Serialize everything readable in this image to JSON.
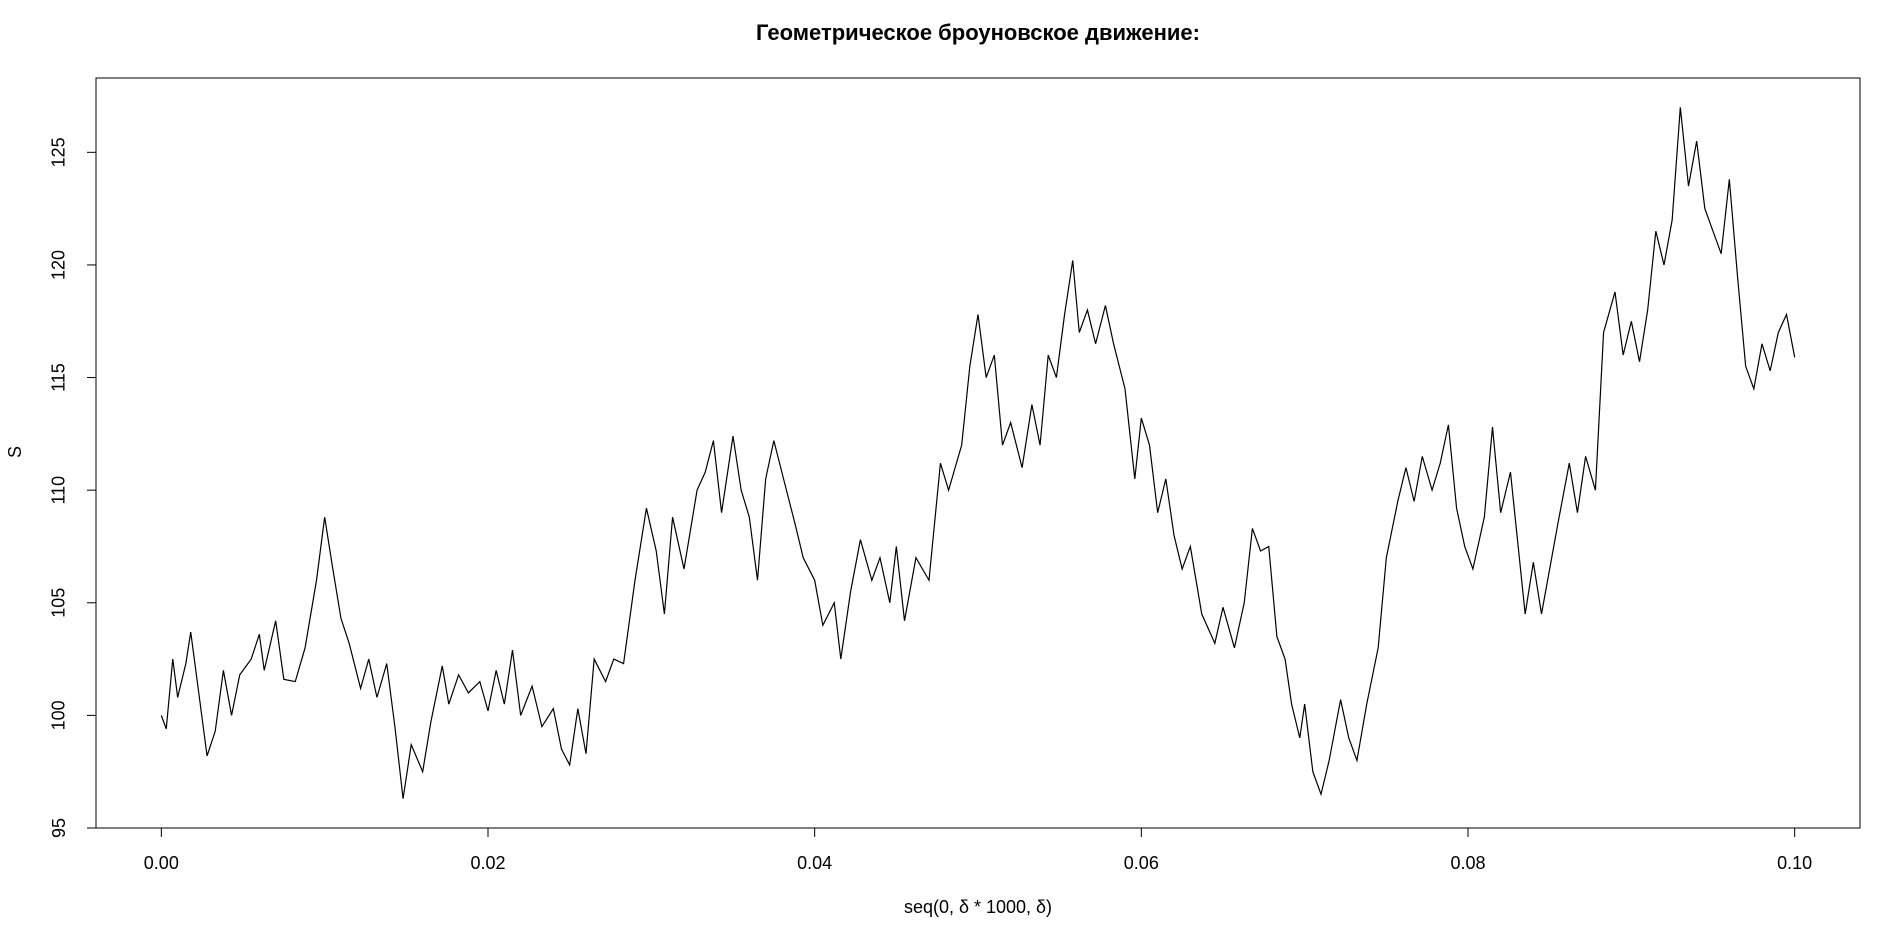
{
  "chart_data": {
    "type": "line",
    "title": "Геометрическое броуновское движение:",
    "xlabel": "seq(0, δ * 1000, δ)",
    "ylabel": "S",
    "color": "#000000",
    "xlim": [
      -0.004,
      0.104
    ],
    "ylim": [
      95,
      128.3
    ],
    "xticks": [
      {
        "value": 0,
        "label": "0.00"
      },
      {
        "value": 0.02,
        "label": "0.02"
      },
      {
        "value": 0.04,
        "label": "0.04"
      },
      {
        "value": 0.06,
        "label": "0.06"
      },
      {
        "value": 0.08,
        "label": "0.08"
      },
      {
        "value": 0.1,
        "label": "0.10"
      }
    ],
    "yticks": [
      95,
      100,
      105,
      110,
      115,
      120,
      125
    ],
    "grid": false,
    "x": [
      0,
      0.0003,
      0.0007,
      0.001,
      0.0015,
      0.0018,
      0.0022,
      0.0028,
      0.0033,
      0.0038,
      0.0043,
      0.0048,
      0.0055,
      0.006,
      0.0063,
      0.007,
      0.0075,
      0.0082,
      0.0088,
      0.0095,
      0.01,
      0.0105,
      0.011,
      0.0115,
      0.0122,
      0.0127,
      0.0132,
      0.0138,
      0.0143,
      0.0148,
      0.0153,
      0.016,
      0.0165,
      0.0172,
      0.0176,
      0.0182,
      0.0188,
      0.0195,
      0.02,
      0.0205,
      0.021,
      0.0215,
      0.022,
      0.0227,
      0.0233,
      0.024,
      0.0245,
      0.025,
      0.0255,
      0.026,
      0.0265,
      0.0272,
      0.0277,
      0.0283,
      0.029,
      0.0297,
      0.0303,
      0.0308,
      0.0313,
      0.032,
      0.0328,
      0.0333,
      0.0338,
      0.0343,
      0.035,
      0.0355,
      0.036,
      0.0365,
      0.037,
      0.0375,
      0.0382,
      0.0388,
      0.0393,
      0.04,
      0.0405,
      0.0412,
      0.0416,
      0.0422,
      0.0428,
      0.0435,
      0.044,
      0.0446,
      0.045,
      0.0455,
      0.0462,
      0.047,
      0.0477,
      0.0482,
      0.049,
      0.0495,
      0.05,
      0.0505,
      0.051,
      0.0515,
      0.052,
      0.0527,
      0.0533,
      0.0538,
      0.0543,
      0.0548,
      0.0553,
      0.0558,
      0.0562,
      0.0567,
      0.0572,
      0.0578,
      0.0583,
      0.059,
      0.0596,
      0.06,
      0.0605,
      0.061,
      0.0615,
      0.062,
      0.0625,
      0.063,
      0.0637,
      0.0645,
      0.065,
      0.0657,
      0.0663,
      0.0668,
      0.0673,
      0.0678,
      0.0683,
      0.0688,
      0.0692,
      0.0697,
      0.07,
      0.0705,
      0.071,
      0.0715,
      0.0722,
      0.0727,
      0.0732,
      0.0738,
      0.0745,
      0.075,
      0.0757,
      0.0762,
      0.0767,
      0.0772,
      0.0778,
      0.0783,
      0.0788,
      0.0793,
      0.0798,
      0.0803,
      0.081,
      0.0815,
      0.082,
      0.0826,
      0.083,
      0.0835,
      0.084,
      0.0845,
      0.085,
      0.0855,
      0.0862,
      0.0867,
      0.0872,
      0.0878,
      0.0883,
      0.089,
      0.0895,
      0.09,
      0.0905,
      0.091,
      0.0915,
      0.092,
      0.0925,
      0.093,
      0.0935,
      0.094,
      0.0945,
      0.095,
      0.0955,
      0.096,
      0.0965,
      0.097,
      0.0975,
      0.098,
      0.0985,
      0.099,
      0.0995,
      0.1
    ],
    "values": [
      100,
      99.4,
      102.5,
      100.8,
      102.3,
      103.7,
      101.5,
      98.2,
      99.3,
      102,
      100,
      101.8,
      102.5,
      103.6,
      102,
      104.2,
      101.6,
      101.5,
      103,
      106,
      108.8,
      106.5,
      104.3,
      103.2,
      101.2,
      102.5,
      100.8,
      102.3,
      99.5,
      96.3,
      98.7,
      97.5,
      99.7,
      102.2,
      100.5,
      101.8,
      101,
      101.5,
      100.2,
      102,
      100.5,
      102.9,
      100,
      101.3,
      99.5,
      100.3,
      98.5,
      97.8,
      100.3,
      98.3,
      102.5,
      101.5,
      102.5,
      102.3,
      106,
      109.2,
      107.3,
      104.5,
      108.8,
      106.5,
      110,
      110.8,
      112.2,
      109,
      112.4,
      110,
      108.8,
      106,
      110.5,
      112.2,
      110.2,
      108.5,
      107,
      106,
      104,
      105,
      102.5,
      105.5,
      107.8,
      106,
      107,
      105,
      107.5,
      104.2,
      107,
      106,
      111.2,
      110,
      112,
      115.5,
      117.8,
      115,
      116,
      112,
      113,
      111,
      113.8,
      112,
      116,
      115,
      117.8,
      120.2,
      117,
      118,
      116.5,
      118.2,
      116.5,
      114.5,
      110.5,
      113.2,
      112,
      109,
      110.5,
      108,
      106.5,
      107.5,
      104.5,
      103.2,
      104.8,
      103,
      105,
      108.3,
      107.3,
      107.5,
      103.5,
      102.5,
      100.5,
      99,
      100.5,
      97.5,
      96.5,
      98,
      100.7,
      99,
      98,
      100.5,
      103,
      107,
      109.5,
      111,
      109.5,
      111.5,
      110,
      111.2,
      112.9,
      109.2,
      107.5,
      106.5,
      108.8,
      112.8,
      109,
      110.8,
      108,
      104.5,
      106.8,
      104.5,
      106.5,
      108.5,
      111.2,
      109,
      111.5,
      110,
      117,
      118.8,
      116,
      117.5,
      115.7,
      118,
      121.5,
      120,
      122,
      127,
      123.5,
      125.5,
      122.5,
      121.5,
      120.5,
      123.8,
      119.5,
      115.5,
      114.5,
      116.5,
      115.3,
      117,
      117.8,
      115.9
    ]
  }
}
